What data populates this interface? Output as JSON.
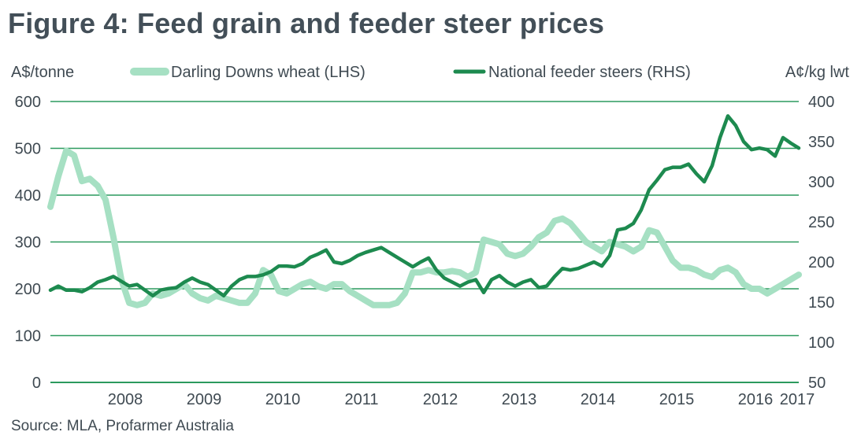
{
  "title": "Figure 4: Feed grain and feeder steer prices",
  "source": "Source: MLA, Profarmer Australia",
  "colors": {
    "wheat": "#a6e0c3",
    "steers": "#1d8a4f",
    "gridline": "#2c9a5e",
    "text": "#3f4a52"
  },
  "chart_data": {
    "type": "line",
    "legend_position": "top",
    "grid": true,
    "y_left": {
      "label": "A$/tonne",
      "ticks": [
        0,
        100,
        200,
        300,
        400,
        500,
        600
      ],
      "range": [
        0,
        600
      ]
    },
    "y_right": {
      "label": "A¢/kg lwt",
      "ticks": [
        50,
        100,
        150,
        200,
        250,
        300,
        350,
        400
      ],
      "range": [
        50,
        400
      ]
    },
    "x_tick_labels": [
      "2008",
      "2009",
      "2010",
      "2011",
      "2012",
      "2013",
      "2014",
      "2015",
      "2016",
      "2017"
    ],
    "x_range": [
      2007.55,
      2017.05
    ],
    "series": [
      {
        "name": "Darling Downs wheat (LHS)",
        "axis": "left",
        "points": [
          [
            2007.55,
            375
          ],
          [
            2007.65,
            440
          ],
          [
            2007.75,
            495
          ],
          [
            2007.85,
            485
          ],
          [
            2007.95,
            430
          ],
          [
            2008.05,
            435
          ],
          [
            2008.15,
            420
          ],
          [
            2008.25,
            390
          ],
          [
            2008.35,
            310
          ],
          [
            2008.45,
            220
          ],
          [
            2008.55,
            170
          ],
          [
            2008.65,
            165
          ],
          [
            2008.75,
            170
          ],
          [
            2008.85,
            190
          ],
          [
            2008.95,
            185
          ],
          [
            2009.05,
            190
          ],
          [
            2009.15,
            200
          ],
          [
            2009.25,
            210
          ],
          [
            2009.35,
            190
          ],
          [
            2009.45,
            180
          ],
          [
            2009.55,
            175
          ],
          [
            2009.65,
            185
          ],
          [
            2009.75,
            180
          ],
          [
            2009.85,
            175
          ],
          [
            2009.95,
            170
          ],
          [
            2010.05,
            170
          ],
          [
            2010.15,
            190
          ],
          [
            2010.25,
            240
          ],
          [
            2010.35,
            230
          ],
          [
            2010.45,
            195
          ],
          [
            2010.55,
            190
          ],
          [
            2010.65,
            200
          ],
          [
            2010.75,
            210
          ],
          [
            2010.85,
            215
          ],
          [
            2010.95,
            205
          ],
          [
            2011.05,
            200
          ],
          [
            2011.15,
            210
          ],
          [
            2011.25,
            210
          ],
          [
            2011.35,
            195
          ],
          [
            2011.45,
            185
          ],
          [
            2011.55,
            175
          ],
          [
            2011.65,
            165
          ],
          [
            2011.75,
            165
          ],
          [
            2011.85,
            165
          ],
          [
            2011.95,
            170
          ],
          [
            2012.05,
            190
          ],
          [
            2012.15,
            235
          ],
          [
            2012.25,
            235
          ],
          [
            2012.35,
            240
          ],
          [
            2012.45,
            235
          ],
          [
            2012.55,
            235
          ],
          [
            2012.65,
            238
          ],
          [
            2012.75,
            235
          ],
          [
            2012.85,
            225
          ],
          [
            2012.95,
            235
          ],
          [
            2013.05,
            305
          ],
          [
            2013.15,
            300
          ],
          [
            2013.25,
            295
          ],
          [
            2013.35,
            275
          ],
          [
            2013.45,
            270
          ],
          [
            2013.55,
            275
          ],
          [
            2013.65,
            290
          ],
          [
            2013.75,
            310
          ],
          [
            2013.85,
            320
          ],
          [
            2013.95,
            345
          ],
          [
            2014.05,
            350
          ],
          [
            2014.15,
            340
          ],
          [
            2014.25,
            320
          ],
          [
            2014.35,
            300
          ],
          [
            2014.45,
            290
          ],
          [
            2014.55,
            280
          ],
          [
            2014.65,
            300
          ],
          [
            2014.75,
            295
          ],
          [
            2014.85,
            290
          ],
          [
            2014.95,
            280
          ],
          [
            2015.05,
            290
          ],
          [
            2015.15,
            325
          ],
          [
            2015.25,
            320
          ],
          [
            2015.35,
            290
          ],
          [
            2015.45,
            260
          ],
          [
            2015.55,
            245
          ],
          [
            2015.65,
            245
          ],
          [
            2015.75,
            240
          ],
          [
            2015.85,
            230
          ],
          [
            2015.95,
            225
          ],
          [
            2016.05,
            240
          ],
          [
            2016.15,
            245
          ],
          [
            2016.25,
            235
          ],
          [
            2016.35,
            210
          ],
          [
            2016.45,
            200
          ],
          [
            2016.55,
            200
          ],
          [
            2016.65,
            190
          ],
          [
            2016.75,
            200
          ],
          [
            2016.85,
            210
          ],
          [
            2016.95,
            220
          ],
          [
            2017.05,
            230
          ]
        ]
      },
      {
        "name": "National feeder steers (RHS)",
        "axis": "right",
        "points": [
          [
            2007.55,
            165
          ],
          [
            2007.65,
            170
          ],
          [
            2007.75,
            165
          ],
          [
            2007.85,
            165
          ],
          [
            2007.95,
            163
          ],
          [
            2008.05,
            168
          ],
          [
            2008.15,
            175
          ],
          [
            2008.25,
            178
          ],
          [
            2008.35,
            182
          ],
          [
            2008.45,
            176
          ],
          [
            2008.55,
            170
          ],
          [
            2008.65,
            172
          ],
          [
            2008.75,
            165
          ],
          [
            2008.85,
            158
          ],
          [
            2008.95,
            165
          ],
          [
            2009.05,
            167
          ],
          [
            2009.15,
            168
          ],
          [
            2009.25,
            175
          ],
          [
            2009.35,
            180
          ],
          [
            2009.45,
            175
          ],
          [
            2009.55,
            172
          ],
          [
            2009.65,
            165
          ],
          [
            2009.75,
            158
          ],
          [
            2009.85,
            170
          ],
          [
            2009.95,
            178
          ],
          [
            2010.05,
            182
          ],
          [
            2010.15,
            182
          ],
          [
            2010.25,
            184
          ],
          [
            2010.35,
            188
          ],
          [
            2010.45,
            195
          ],
          [
            2010.55,
            195
          ],
          [
            2010.65,
            194
          ],
          [
            2010.75,
            198
          ],
          [
            2010.85,
            206
          ],
          [
            2010.95,
            210
          ],
          [
            2011.05,
            215
          ],
          [
            2011.15,
            200
          ],
          [
            2011.25,
            198
          ],
          [
            2011.35,
            202
          ],
          [
            2011.45,
            208
          ],
          [
            2011.55,
            212
          ],
          [
            2011.65,
            215
          ],
          [
            2011.75,
            218
          ],
          [
            2011.85,
            212
          ],
          [
            2011.95,
            206
          ],
          [
            2012.05,
            200
          ],
          [
            2012.15,
            194
          ],
          [
            2012.25,
            200
          ],
          [
            2012.35,
            205
          ],
          [
            2012.45,
            190
          ],
          [
            2012.55,
            180
          ],
          [
            2012.65,
            175
          ],
          [
            2012.75,
            170
          ],
          [
            2012.85,
            175
          ],
          [
            2012.95,
            178
          ],
          [
            2013.05,
            162
          ],
          [
            2013.15,
            178
          ],
          [
            2013.25,
            183
          ],
          [
            2013.35,
            175
          ],
          [
            2013.45,
            170
          ],
          [
            2013.55,
            175
          ],
          [
            2013.65,
            178
          ],
          [
            2013.75,
            168
          ],
          [
            2013.85,
            170
          ],
          [
            2013.95,
            182
          ],
          [
            2014.05,
            192
          ],
          [
            2014.15,
            190
          ],
          [
            2014.25,
            192
          ],
          [
            2014.35,
            196
          ],
          [
            2014.45,
            200
          ],
          [
            2014.55,
            195
          ],
          [
            2014.65,
            208
          ],
          [
            2014.75,
            240
          ],
          [
            2014.85,
            242
          ],
          [
            2014.95,
            248
          ],
          [
            2015.05,
            265
          ],
          [
            2015.15,
            290
          ],
          [
            2015.25,
            302
          ],
          [
            2015.35,
            315
          ],
          [
            2015.45,
            318
          ],
          [
            2015.55,
            318
          ],
          [
            2015.65,
            322
          ],
          [
            2015.75,
            310
          ],
          [
            2015.85,
            300
          ],
          [
            2015.95,
            320
          ],
          [
            2016.05,
            355
          ],
          [
            2016.15,
            382
          ],
          [
            2016.25,
            370
          ],
          [
            2016.35,
            350
          ],
          [
            2016.45,
            340
          ],
          [
            2016.55,
            342
          ],
          [
            2016.65,
            340
          ],
          [
            2016.75,
            332
          ],
          [
            2016.85,
            355
          ],
          [
            2016.95,
            348
          ],
          [
            2017.05,
            342
          ]
        ]
      }
    ]
  }
}
